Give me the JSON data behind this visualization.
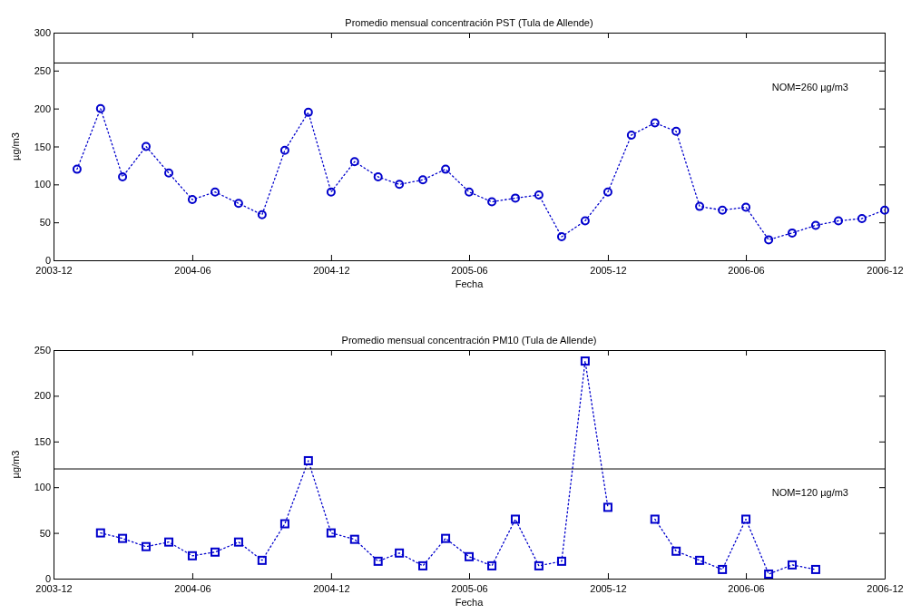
{
  "chart_data": [
    {
      "type": "line",
      "title": "Promedio mensual concentración PST (Tula de Allende)",
      "xlabel": "Fecha",
      "ylabel": "µg/m3",
      "x": [
        "2004-01",
        "2004-02",
        "2004-03",
        "2004-04",
        "2004-05",
        "2004-06",
        "2004-07",
        "2004-08",
        "2004-09",
        "2004-10",
        "2004-11",
        "2004-12",
        "2005-01",
        "2005-02",
        "2005-03",
        "2005-04",
        "2005-05",
        "2005-06",
        "2005-07",
        "2005-08",
        "2005-09",
        "2005-10",
        "2005-11",
        "2005-12",
        "2006-01",
        "2006-02",
        "2006-03",
        "2006-04",
        "2006-05",
        "2006-06",
        "2006-07",
        "2006-08",
        "2006-09",
        "2006-10",
        "2006-11",
        "2006-12"
      ],
      "series": [
        {
          "color": "#0000cc",
          "values": [
            120,
            200,
            110,
            150,
            115,
            80,
            90,
            75,
            60,
            145,
            195,
            90,
            130,
            110,
            100,
            106,
            120,
            90,
            77,
            82,
            86,
            31,
            52,
            90,
            165,
            181,
            170,
            71,
            66,
            70,
            27,
            36,
            46,
            52,
            55,
            66
          ]
        }
      ],
      "marker": "circle",
      "line_style": "dotted",
      "xlim": [
        "2003-12",
        "2006-12"
      ],
      "xticks": [
        "2003-12",
        "2004-06",
        "2004-12",
        "2005-06",
        "2005-12",
        "2006-06",
        "2006-12"
      ],
      "ylim": [
        0,
        300
      ],
      "yticks": [
        0,
        50,
        100,
        150,
        200,
        250,
        300
      ],
      "ref_lines": [
        {
          "axis": "y",
          "value": 260,
          "label": "NOM=260 µg/m3",
          "color": "#000000"
        }
      ]
    },
    {
      "type": "line",
      "title": "Promedio mensual concentración PM10 (Tula de Allende)",
      "xlabel": "Fecha",
      "ylabel": "µg/m3",
      "x": [
        "2004-02",
        "2004-03",
        "2004-04",
        "2004-05",
        "2004-06",
        "2004-07",
        "2004-08",
        "2004-09",
        "2004-10",
        "2004-11",
        "2004-12",
        "2005-01",
        "2005-02",
        "2005-03",
        "2005-04",
        "2005-05",
        "2005-06",
        "2005-07",
        "2005-08",
        "2005-09",
        "2005-10",
        "2005-11",
        "2005-12",
        "2006-01",
        "2006-02",
        "2006-03",
        "2006-04",
        "2006-05",
        "2006-06",
        "2006-07",
        "2006-08",
        "2006-09"
      ],
      "series": [
        {
          "color": "#0000cc",
          "values": [
            50,
            44,
            35,
            40,
            25,
            29,
            40,
            20,
            60,
            129,
            50,
            43,
            19,
            28,
            14,
            44,
            24,
            14,
            65,
            14,
            19,
            238,
            78,
            null,
            65,
            30,
            20,
            10,
            65,
            5,
            15,
            10
          ]
        }
      ],
      "marker": "square",
      "line_style": "dotted",
      "xlim": [
        "2003-12",
        "2006-12"
      ],
      "xticks": [
        "2003-12",
        "2004-06",
        "2004-12",
        "2005-06",
        "2005-12",
        "2006-06",
        "2006-12"
      ],
      "ylim": [
        0,
        250
      ],
      "yticks": [
        0,
        50,
        100,
        150,
        200,
        250
      ],
      "ref_lines": [
        {
          "axis": "y",
          "value": 120,
          "label": "NOM=120 µg/m3",
          "color": "#000000"
        }
      ]
    }
  ]
}
